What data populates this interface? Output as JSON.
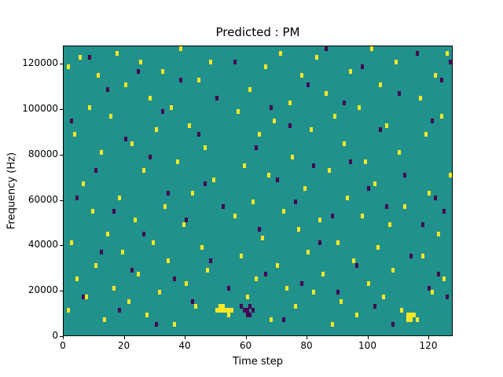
{
  "chart_data": {
    "type": "heatmap",
    "title": "Predicted : PM",
    "xlabel": "Time step",
    "ylabel": "Frequency (Hz)",
    "x_range": [
      0,
      128
    ],
    "y_range": [
      0,
      128000
    ],
    "x_ticks": [
      0,
      20,
      40,
      60,
      80,
      100,
      120
    ],
    "y_ticks": [
      0,
      20000,
      40000,
      60000,
      80000,
      100000,
      120000
    ],
    "n_time_bins": 128,
    "n_freq_bins": 64,
    "freq_bin_hz": 2000,
    "grid": false,
    "legend": "none",
    "colors": {
      "background_mid": "#21918c",
      "high": "#fde725",
      "low": "#440154",
      "axes": "#000000",
      "figure_background": "#ffffff"
    },
    "value_legend": "cells listed as [time_bin, freq_bin, value]; value 1 = high (yellow), value 0 = low (dark purple); all other cells = mid (teal)",
    "cells": [
      [
        1,
        5,
        1
      ],
      [
        1,
        59,
        1
      ],
      [
        2,
        20,
        1
      ],
      [
        3,
        44,
        1
      ],
      [
        4,
        12,
        1
      ],
      [
        5,
        61,
        1
      ],
      [
        6,
        33,
        1
      ],
      [
        7,
        8,
        1
      ],
      [
        8,
        50,
        1
      ],
      [
        9,
        27,
        1
      ],
      [
        10,
        15,
        1
      ],
      [
        11,
        57,
        1
      ],
      [
        12,
        40,
        1
      ],
      [
        13,
        3,
        1
      ],
      [
        14,
        22,
        1
      ],
      [
        15,
        48,
        1
      ],
      [
        16,
        10,
        1
      ],
      [
        17,
        62,
        1
      ],
      [
        18,
        30,
        1
      ],
      [
        19,
        18,
        1
      ],
      [
        20,
        55,
        1
      ],
      [
        21,
        7,
        1
      ],
      [
        22,
        42,
        1
      ],
      [
        23,
        25,
        1
      ],
      [
        24,
        13,
        1
      ],
      [
        25,
        60,
        1
      ],
      [
        26,
        36,
        1
      ],
      [
        27,
        4,
        1
      ],
      [
        28,
        52,
        1
      ],
      [
        29,
        20,
        1
      ],
      [
        30,
        45,
        1
      ],
      [
        31,
        9,
        1
      ],
      [
        32,
        58,
        1
      ],
      [
        33,
        28,
        1
      ],
      [
        34,
        16,
        1
      ],
      [
        35,
        50,
        1
      ],
      [
        36,
        2,
        1
      ],
      [
        37,
        38,
        1
      ],
      [
        38,
        63,
        1
      ],
      [
        39,
        24,
        1
      ],
      [
        40,
        11,
        1
      ],
      [
        41,
        46,
        1
      ],
      [
        42,
        31,
        1
      ],
      [
        43,
        6,
        1
      ],
      [
        44,
        56,
        1
      ],
      [
        45,
        19,
        1
      ],
      [
        46,
        41,
        1
      ],
      [
        47,
        14,
        1
      ],
      [
        48,
        60,
        1
      ],
      [
        49,
        34,
        1
      ],
      [
        50,
        5,
        1
      ],
      [
        51,
        5,
        1
      ],
      [
        51,
        6,
        1
      ],
      [
        52,
        5,
        1
      ],
      [
        52,
        6,
        1
      ],
      [
        53,
        5,
        1
      ],
      [
        54,
        4,
        1
      ],
      [
        54,
        5,
        1
      ],
      [
        55,
        5,
        1
      ],
      [
        56,
        26,
        1
      ],
      [
        57,
        49,
        1
      ],
      [
        58,
        17,
        1
      ],
      [
        59,
        37,
        1
      ],
      [
        60,
        8,
        1
      ],
      [
        61,
        54,
        1
      ],
      [
        62,
        29,
        1
      ],
      [
        63,
        12,
        1
      ],
      [
        64,
        44,
        1
      ],
      [
        65,
        21,
        1
      ],
      [
        66,
        59,
        1
      ],
      [
        67,
        35,
        1
      ],
      [
        68,
        3,
        1
      ],
      [
        69,
        47,
        1
      ],
      [
        70,
        15,
        1
      ],
      [
        71,
        62,
        1
      ],
      [
        72,
        27,
        1
      ],
      [
        73,
        10,
        1
      ],
      [
        74,
        51,
        1
      ],
      [
        75,
        39,
        1
      ],
      [
        76,
        6,
        1
      ],
      [
        77,
        23,
        1
      ],
      [
        78,
        57,
        1
      ],
      [
        79,
        32,
        1
      ],
      [
        80,
        18,
        1
      ],
      [
        81,
        45,
        1
      ],
      [
        82,
        9,
        1
      ],
      [
        83,
        61,
        1
      ],
      [
        84,
        25,
        1
      ],
      [
        85,
        13,
        1
      ],
      [
        86,
        53,
        1
      ],
      [
        87,
        36,
        1
      ],
      [
        88,
        2,
        1
      ],
      [
        89,
        48,
        1
      ],
      [
        90,
        20,
        1
      ],
      [
        91,
        7,
        1
      ],
      [
        92,
        42,
        1
      ],
      [
        93,
        30,
        1
      ],
      [
        94,
        58,
        1
      ],
      [
        95,
        16,
        1
      ],
      [
        96,
        4,
        1
      ],
      [
        97,
        50,
        1
      ],
      [
        98,
        26,
        1
      ],
      [
        99,
        38,
        1
      ],
      [
        100,
        11,
        1
      ],
      [
        101,
        63,
        1
      ],
      [
        102,
        33,
        1
      ],
      [
        103,
        19,
        1
      ],
      [
        104,
        55,
        1
      ],
      [
        105,
        8,
        1
      ],
      [
        106,
        46,
        1
      ],
      [
        107,
        24,
        1
      ],
      [
        108,
        14,
        1
      ],
      [
        109,
        60,
        1
      ],
      [
        110,
        40,
        1
      ],
      [
        111,
        5,
        1
      ],
      [
        112,
        28,
        1
      ],
      [
        113,
        3,
        1
      ],
      [
        113,
        4,
        1
      ],
      [
        114,
        3,
        1
      ],
      [
        114,
        4,
        1
      ],
      [
        115,
        4,
        1
      ],
      [
        116,
        3,
        1
      ],
      [
        117,
        52,
        1
      ],
      [
        118,
        17,
        1
      ],
      [
        119,
        44,
        1
      ],
      [
        120,
        31,
        1
      ],
      [
        121,
        9,
        1
      ],
      [
        122,
        57,
        1
      ],
      [
        123,
        22,
        1
      ],
      [
        124,
        48,
        1
      ],
      [
        125,
        12,
        1
      ],
      [
        126,
        62,
        1
      ],
      [
        127,
        35,
        1
      ],
      [
        2,
        47,
        0
      ],
      [
        4,
        30,
        0
      ],
      [
        6,
        8,
        0
      ],
      [
        8,
        61,
        0
      ],
      [
        10,
        36,
        0
      ],
      [
        12,
        18,
        0
      ],
      [
        14,
        54,
        0
      ],
      [
        16,
        27,
        0
      ],
      [
        18,
        5,
        0
      ],
      [
        20,
        43,
        0
      ],
      [
        22,
        14,
        0
      ],
      [
        24,
        58,
        0
      ],
      [
        26,
        22,
        0
      ],
      [
        28,
        39,
        0
      ],
      [
        30,
        2,
        0
      ],
      [
        32,
        49,
        0
      ],
      [
        34,
        31,
        0
      ],
      [
        36,
        12,
        0
      ],
      [
        38,
        56,
        0
      ],
      [
        40,
        25,
        0
      ],
      [
        42,
        7,
        0
      ],
      [
        44,
        44,
        0
      ],
      [
        46,
        33,
        0
      ],
      [
        48,
        16,
        0
      ],
      [
        50,
        52,
        0
      ],
      [
        52,
        28,
        0
      ],
      [
        54,
        10,
        0
      ],
      [
        56,
        60,
        0
      ],
      [
        58,
        6,
        0
      ],
      [
        59,
        5,
        0
      ],
      [
        60,
        4,
        0
      ],
      [
        60,
        5,
        0
      ],
      [
        61,
        4,
        0
      ],
      [
        61,
        6,
        0
      ],
      [
        62,
        5,
        0
      ],
      [
        63,
        41,
        0
      ],
      [
        64,
        23,
        0
      ],
      [
        66,
        13,
        0
      ],
      [
        68,
        50,
        0
      ],
      [
        70,
        34,
        0
      ],
      [
        72,
        3,
        0
      ],
      [
        74,
        46,
        0
      ],
      [
        76,
        29,
        0
      ],
      [
        78,
        11,
        0
      ],
      [
        80,
        55,
        0
      ],
      [
        82,
        37,
        0
      ],
      [
        84,
        20,
        0
      ],
      [
        86,
        63,
        0
      ],
      [
        88,
        26,
        0
      ],
      [
        90,
        9,
        0
      ],
      [
        92,
        51,
        0
      ],
      [
        94,
        38,
        0
      ],
      [
        96,
        15,
        0
      ],
      [
        98,
        59,
        0
      ],
      [
        100,
        32,
        0
      ],
      [
        102,
        6,
        0
      ],
      [
        104,
        45,
        0
      ],
      [
        106,
        28,
        0
      ],
      [
        108,
        2,
        0
      ],
      [
        110,
        53,
        0
      ],
      [
        112,
        35,
        0
      ],
      [
        114,
        17,
        0
      ],
      [
        116,
        62,
        0
      ],
      [
        118,
        24,
        0
      ],
      [
        120,
        10,
        0
      ],
      [
        121,
        47,
        0
      ],
      [
        122,
        30,
        0
      ],
      [
        123,
        13,
        0
      ],
      [
        124,
        56,
        0
      ],
      [
        125,
        27,
        0
      ],
      [
        126,
        8,
        0
      ],
      [
        127,
        60,
        0
      ]
    ]
  }
}
